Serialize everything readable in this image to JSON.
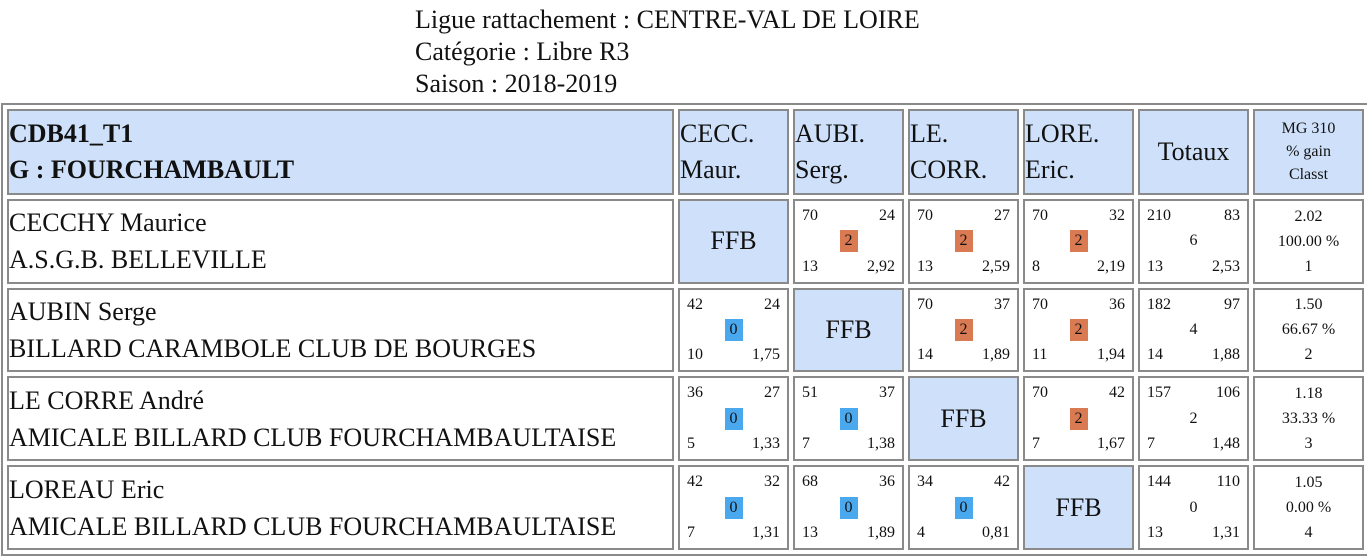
{
  "header": {
    "ligue": "Ligue rattachement : CENTRE-VAL DE LOIRE",
    "categorie": "Catégorie : Libre R3",
    "saison": "Saison : 2018-2019"
  },
  "table": {
    "title1": "CDB41_T1",
    "title2": "G : FOURCHAMBAULT",
    "columns": [
      {
        "l1": "CECC.",
        "l2": "Maur."
      },
      {
        "l1": "AUBI.",
        "l2": "Serg."
      },
      {
        "l1": "LE.",
        "l2": "CORR."
      },
      {
        "l1": "LORE.",
        "l2": "Eric."
      }
    ],
    "totaux_label": "Totaux",
    "mg_l1": "MG 310",
    "mg_l2": "% gain",
    "mg_l3": "Classt",
    "ffb_label": "FFB",
    "rows": [
      {
        "name": "CECCHY Maurice",
        "club": "A.S.G.B. BELLEVILLE",
        "cells": [
          null,
          {
            "tl": "70",
            "tr": "24",
            "mid": "2",
            "bl": "13",
            "br": "2,92"
          },
          {
            "tl": "70",
            "tr": "27",
            "mid": "2",
            "bl": "13",
            "br": "2,59"
          },
          {
            "tl": "70",
            "tr": "32",
            "mid": "2",
            "bl": "8",
            "br": "2,19"
          }
        ],
        "totals": {
          "tl": "210",
          "tr": "83",
          "mid": "6",
          "bl": "13",
          "br": "2,53"
        },
        "mg": {
          "moy": "2.02",
          "pct": "100.00 %",
          "rank": "1"
        }
      },
      {
        "name": "AUBIN Serge",
        "club": "BILLARD CARAMBOLE CLUB DE BOURGES",
        "cells": [
          {
            "tl": "42",
            "tr": "24",
            "mid": "0",
            "bl": "10",
            "br": "1,75"
          },
          null,
          {
            "tl": "70",
            "tr": "37",
            "mid": "2",
            "bl": "14",
            "br": "1,89"
          },
          {
            "tl": "70",
            "tr": "36",
            "mid": "2",
            "bl": "11",
            "br": "1,94"
          }
        ],
        "totals": {
          "tl": "182",
          "tr": "97",
          "mid": "4",
          "bl": "14",
          "br": "1,88"
        },
        "mg": {
          "moy": "1.50",
          "pct": "66.67 %",
          "rank": "2"
        }
      },
      {
        "name": "LE CORRE André",
        "club": "AMICALE BILLARD CLUB FOURCHAMBAULTAISE",
        "cells": [
          {
            "tl": "36",
            "tr": "27",
            "mid": "0",
            "bl": "5",
            "br": "1,33"
          },
          {
            "tl": "51",
            "tr": "37",
            "mid": "0",
            "bl": "7",
            "br": "1,38"
          },
          null,
          {
            "tl": "70",
            "tr": "42",
            "mid": "2",
            "bl": "7",
            "br": "1,67"
          }
        ],
        "totals": {
          "tl": "157",
          "tr": "106",
          "mid": "2",
          "bl": "7",
          "br": "1,48"
        },
        "mg": {
          "moy": "1.18",
          "pct": "33.33 %",
          "rank": "3"
        }
      },
      {
        "name": "LOREAU Eric",
        "club": "AMICALE BILLARD CLUB FOURCHAMBAULTAISE",
        "cells": [
          {
            "tl": "42",
            "tr": "32",
            "mid": "0",
            "bl": "7",
            "br": "1,31"
          },
          {
            "tl": "68",
            "tr": "36",
            "mid": "0",
            "bl": "13",
            "br": "1,89"
          },
          {
            "tl": "34",
            "tr": "42",
            "mid": "0",
            "bl": "4",
            "br": "0,81"
          },
          null
        ],
        "totals": {
          "tl": "144",
          "tr": "110",
          "mid": "0",
          "bl": "13",
          "br": "1,31"
        },
        "mg": {
          "moy": "1.05",
          "pct": "0.00 %",
          "rank": "4"
        }
      }
    ]
  }
}
